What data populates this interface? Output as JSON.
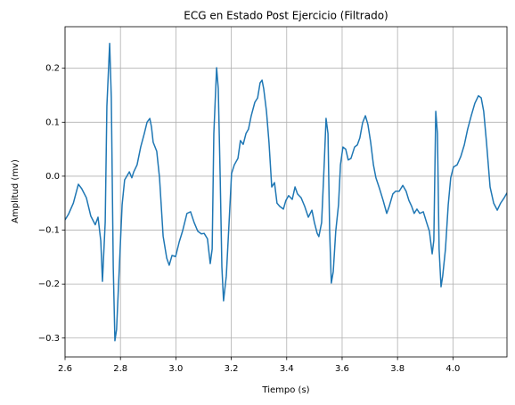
{
  "chart_data": {
    "type": "line",
    "title": "ECG en Estado Post Ejercicio (Filtrado)",
    "xlabel": "Tiempo (s)",
    "ylabel": "Amplitud (mv)",
    "color": "#1f77b4",
    "grid": true,
    "xlim": [
      2.6,
      4.195
    ],
    "ylim": [
      -0.335,
      0.277
    ],
    "xticks": [
      2.6,
      2.8,
      {
        "value": 3,
        "label": "3.0"
      },
      3.2,
      3.4,
      3.6,
      3.8,
      {
        "value": 4,
        "label": "4.0"
      }
    ],
    "yticks": [
      {
        "value": -0.3,
        "label": "−0.3"
      },
      {
        "value": -0.2,
        "label": "−0.2"
      },
      {
        "value": -0.1,
        "label": "−0.1"
      },
      {
        "value": 0,
        "label": "0.0"
      },
      0.1,
      0.2
    ],
    "x": [
      2.6,
      2.613,
      2.63,
      2.648,
      2.66,
      2.677,
      2.693,
      2.709,
      2.719,
      2.729,
      2.735,
      2.745,
      2.751,
      2.761,
      2.767,
      2.774,
      2.78,
      2.786,
      2.796,
      2.806,
      2.815,
      2.832,
      2.841,
      2.848,
      2.86,
      2.873,
      2.886,
      2.896,
      2.906,
      2.912,
      2.918,
      2.931,
      2.941,
      2.954,
      2.967,
      2.976,
      2.986,
      2.999,
      3.012,
      3.024,
      3.04,
      3.053,
      3.066,
      3.079,
      3.092,
      3.102,
      3.114,
      3.124,
      3.131,
      3.137,
      3.147,
      3.153,
      3.16,
      3.166,
      3.172,
      3.182,
      3.192,
      3.201,
      3.211,
      3.224,
      3.233,
      3.243,
      3.253,
      3.262,
      3.272,
      3.285,
      3.295,
      3.304,
      3.311,
      3.317,
      3.327,
      3.336,
      3.346,
      3.356,
      3.365,
      3.375,
      3.388,
      3.397,
      3.407,
      3.42,
      3.43,
      3.439,
      3.452,
      3.465,
      3.478,
      3.491,
      3.5,
      3.51,
      3.516,
      3.526,
      3.536,
      3.542,
      3.549,
      3.555,
      3.561,
      3.568,
      3.577,
      3.587,
      3.594,
      3.603,
      3.613,
      3.622,
      3.632,
      3.645,
      3.655,
      3.664,
      3.674,
      3.684,
      3.693,
      3.703,
      3.713,
      3.722,
      3.735,
      3.748,
      3.761,
      3.77,
      3.783,
      3.793,
      3.806,
      3.819,
      3.831,
      3.841,
      3.851,
      3.86,
      3.87,
      3.88,
      3.893,
      3.905,
      3.915,
      3.925,
      3.931,
      3.938,
      3.944,
      3.95,
      3.957,
      3.963,
      3.973,
      3.983,
      3.992,
      4.002,
      4.015,
      4.028,
      4.041,
      4.053,
      4.066,
      4.079,
      4.092,
      4.102,
      4.111,
      4.121,
      4.134,
      4.147,
      4.16,
      4.172,
      4.185,
      4.195
    ],
    "values": [
      -0.081,
      -0.07,
      -0.05,
      -0.015,
      -0.023,
      -0.04,
      -0.074,
      -0.09,
      -0.076,
      -0.12,
      -0.195,
      -0.085,
      0.13,
      0.246,
      0.145,
      -0.168,
      -0.305,
      -0.284,
      -0.168,
      -0.053,
      -0.007,
      0.008,
      -0.003,
      0.008,
      0.021,
      0.054,
      0.079,
      0.1,
      0.107,
      0.091,
      0.063,
      0.046,
      -0.003,
      -0.111,
      -0.152,
      -0.165,
      -0.147,
      -0.149,
      -0.122,
      -0.102,
      -0.069,
      -0.066,
      -0.086,
      -0.102,
      -0.107,
      -0.106,
      -0.116,
      -0.162,
      -0.135,
      0.079,
      0.201,
      0.162,
      -0.003,
      -0.168,
      -0.231,
      -0.185,
      -0.086,
      0.005,
      0.021,
      0.033,
      0.066,
      0.059,
      0.079,
      0.087,
      0.112,
      0.137,
      0.145,
      0.173,
      0.178,
      0.162,
      0.12,
      0.063,
      -0.02,
      -0.012,
      -0.05,
      -0.056,
      -0.061,
      -0.045,
      -0.036,
      -0.043,
      -0.02,
      -0.033,
      -0.04,
      -0.056,
      -0.076,
      -0.063,
      -0.086,
      -0.106,
      -0.112,
      -0.086,
      0.03,
      0.107,
      0.079,
      -0.102,
      -0.198,
      -0.177,
      -0.102,
      -0.053,
      0.021,
      0.054,
      0.05,
      0.03,
      0.033,
      0.054,
      0.058,
      0.071,
      0.099,
      0.112,
      0.096,
      0.063,
      0.021,
      -0.003,
      -0.023,
      -0.045,
      -0.069,
      -0.056,
      -0.033,
      -0.028,
      -0.028,
      -0.017,
      -0.028,
      -0.045,
      -0.056,
      -0.069,
      -0.061,
      -0.069,
      -0.066,
      -0.086,
      -0.102,
      -0.144,
      -0.119,
      0.12,
      0.079,
      -0.135,
      -0.205,
      -0.185,
      -0.135,
      -0.053,
      -0.003,
      0.017,
      0.021,
      0.036,
      0.058,
      0.087,
      0.112,
      0.135,
      0.149,
      0.145,
      0.12,
      0.063,
      -0.02,
      -0.05,
      -0.063,
      -0.05,
      -0.04,
      -0.031
    ]
  }
}
